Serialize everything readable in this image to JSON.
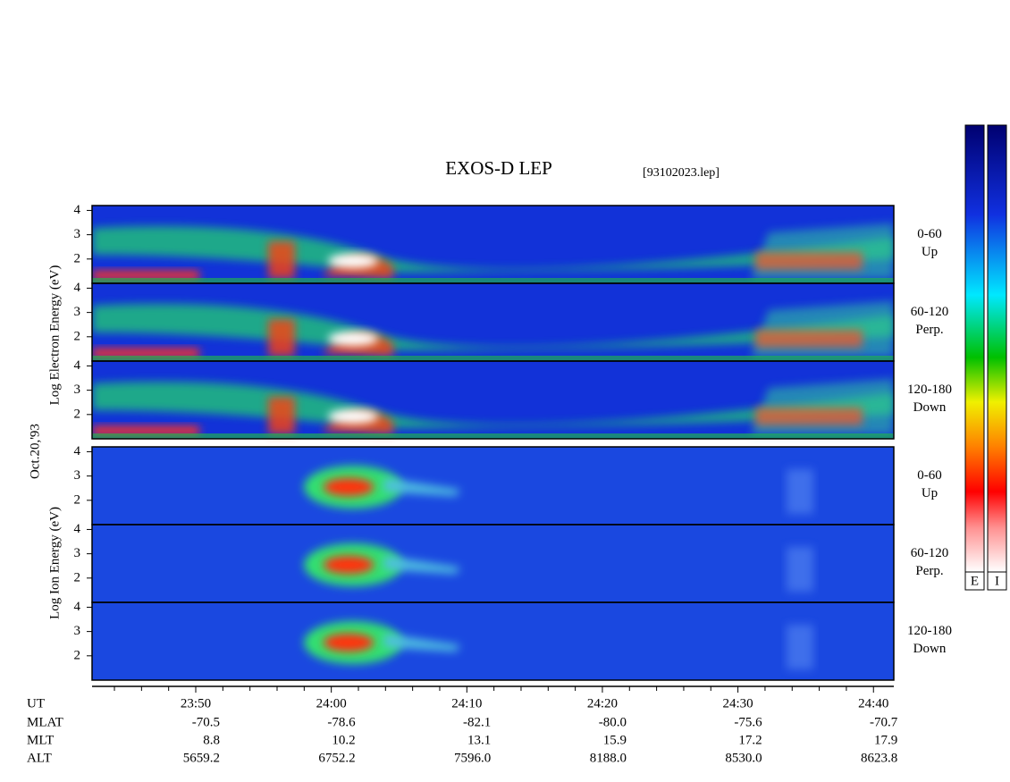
{
  "chart_data": {
    "type": "spectrogram",
    "title": "EXOS-D LEP",
    "file": "[93102023.lep]",
    "date": "Oct.20,'93",
    "y_labels": [
      "Log Electron Energy (eV)",
      "Log Ion Energy (eV)"
    ],
    "colorbars": [
      "E",
      "I"
    ],
    "xlim": [
      42.35,
      101.5
    ],
    "xticks": [
      {
        "value": 50,
        "label": "23:50"
      },
      {
        "value": 60,
        "label": "24:00"
      },
      {
        "value": 70,
        "label": "24:10"
      },
      {
        "value": 80,
        "label": "24:20"
      },
      {
        "value": 90,
        "label": "24:30"
      },
      {
        "value": 100,
        "label": "24:40"
      }
    ],
    "xminorticks": [
      44,
      46,
      48,
      52,
      54,
      56,
      58,
      62,
      64,
      66,
      68,
      72,
      74,
      76,
      78,
      82,
      84,
      86,
      88,
      92,
      94,
      96,
      98
    ],
    "x_row_label": "UT",
    "ephemeris": [
      {
        "name": "MLAT",
        "values": [
          "-70.5",
          "-78.6",
          "-82.1",
          "-80.0",
          "-75.6",
          "-70.7"
        ]
      },
      {
        "name": "MLT",
        "values": [
          "8.8",
          "10.2",
          "13.1",
          "15.9",
          "17.2",
          "17.9"
        ]
      },
      {
        "name": "ALT",
        "values": [
          "5659.2",
          "6752.2",
          "7596.0",
          "8188.0",
          "8530.0",
          "8623.8"
        ]
      }
    ],
    "panels": [
      {
        "pitch": "0-60",
        "direction": "Up",
        "ylim": [
          1,
          4.2
        ],
        "yticks": [
          2,
          3,
          4
        ]
      },
      {
        "pitch": "60-120",
        "direction": "Perp.",
        "ylim": [
          1,
          4.2
        ],
        "yticks": [
          2,
          3,
          4
        ]
      },
      {
        "pitch": "120-180",
        "direction": "Down",
        "ylim": [
          1,
          4.2
        ],
        "yticks": [
          2,
          3,
          4
        ]
      },
      {
        "pitch": "0-60",
        "direction": "Up",
        "ylim": [
          1,
          4.2
        ],
        "yticks": [
          2,
          3,
          4
        ]
      },
      {
        "pitch": "60-120",
        "direction": "Perp.",
        "ylim": [
          1,
          4.2
        ],
        "yticks": [
          2,
          3,
          4
        ]
      },
      {
        "pitch": "120-180",
        "direction": "Down",
        "ylim": [
          1,
          4.2
        ],
        "yticks": [
          2,
          3,
          4
        ]
      }
    ]
  }
}
